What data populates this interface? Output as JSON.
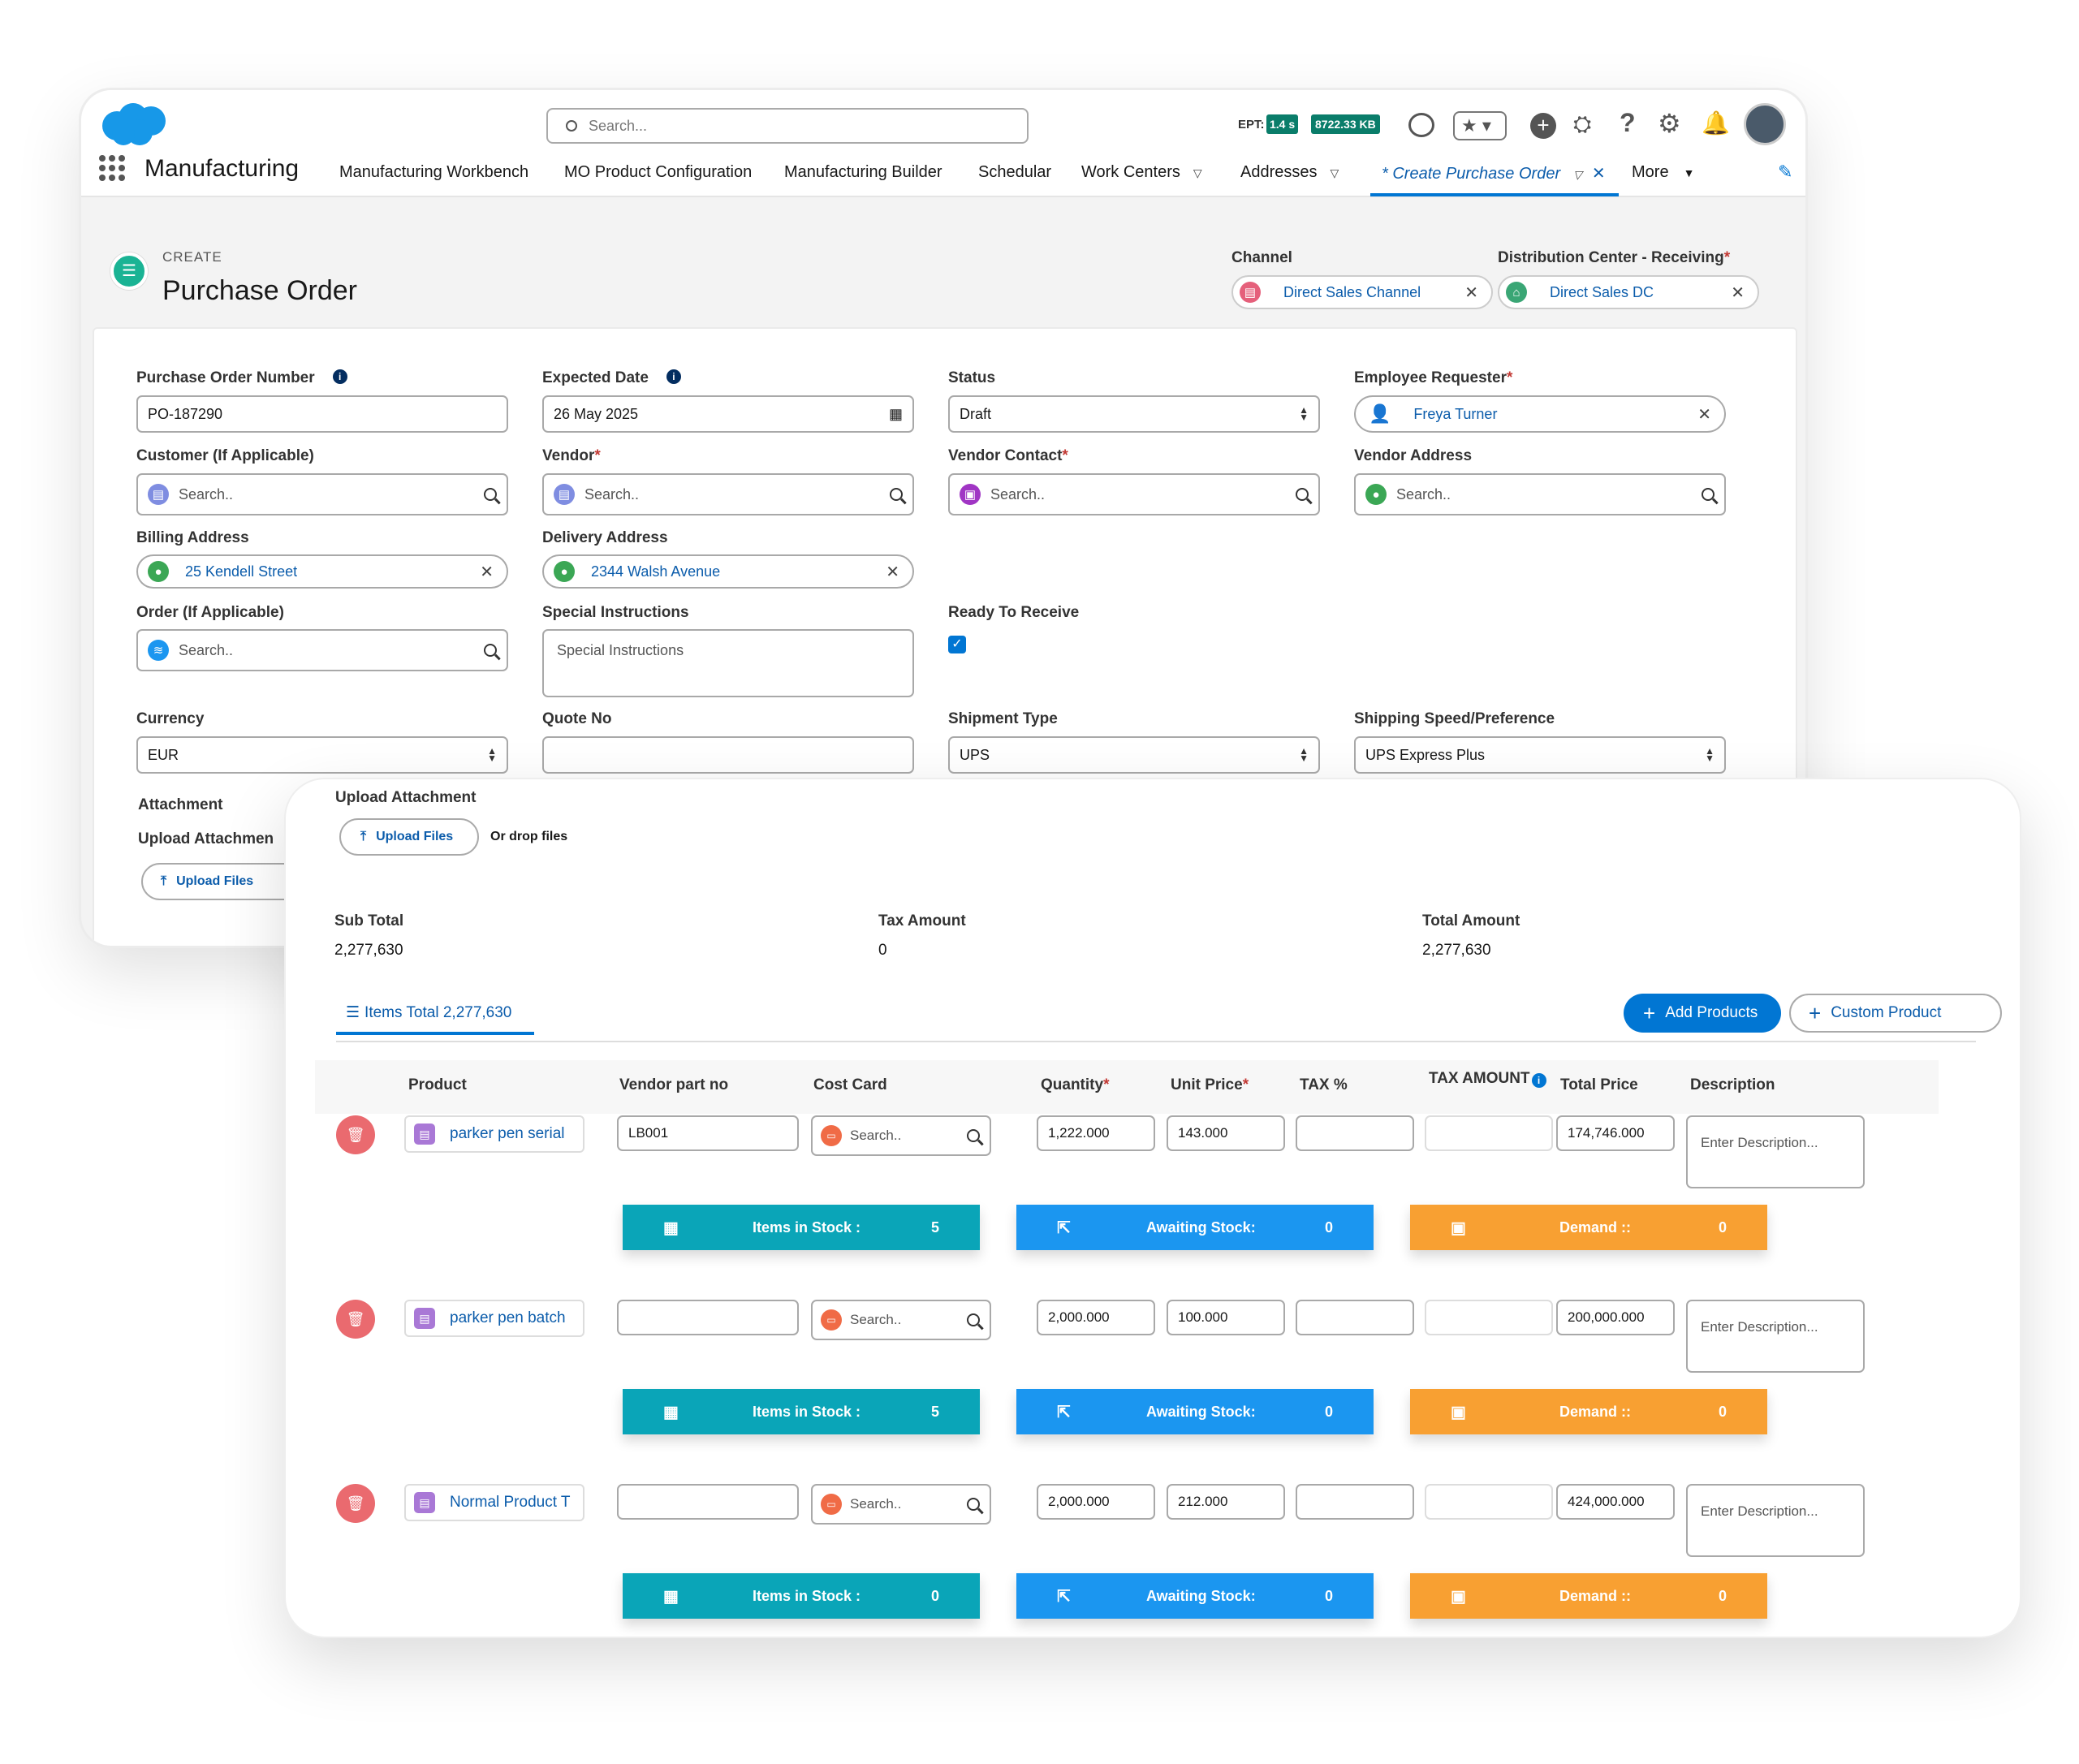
{
  "app": {
    "name": "Manufacturing",
    "search_placeholder": "Search..."
  },
  "header": {
    "ept_label": "EPT:",
    "ept_time": "1.4 s",
    "ept_size": "8722.33 KB"
  },
  "nav": {
    "items": [
      "Manufacturing Workbench",
      "MO Product Configuration",
      "Manufacturing Builder",
      "Schedular",
      "Work Centers",
      "Addresses"
    ],
    "active_tab": "* Create Purchase Order",
    "more": "More"
  },
  "page": {
    "eyebrow": "CREATE",
    "title": "Purchase Order",
    "channel_label": "Channel",
    "channel_value": "Direct Sales Channel",
    "dc_label": "Distribution Center - Receiving",
    "dc_value": "Direct Sales DC"
  },
  "form": {
    "po_number_label": "Purchase Order Number",
    "po_number": "PO-187290",
    "expected_date_label": "Expected Date",
    "expected_date": "26 May 2025",
    "status_label": "Status",
    "status": "Draft",
    "employee_label": "Employee Requester",
    "employee": "Freya Turner",
    "customer_label": "Customer (If Applicable)",
    "vendor_label": "Vendor",
    "vendor_contact_label": "Vendor Contact",
    "vendor_address_label": "Vendor Address",
    "search_placeholder": "Search..",
    "billing_label": "Billing Address",
    "billing": "25 Kendell Street",
    "delivery_label": "Delivery Address",
    "delivery": "2344 Walsh Avenue",
    "order_label": "Order (If Applicable)",
    "special_label": "Special Instructions",
    "special_placeholder": "Special Instructions",
    "ready_label": "Ready To Receive",
    "currency_label": "Currency",
    "currency": "EUR",
    "quote_label": "Quote No",
    "shipment_label": "Shipment Type",
    "shipment": "UPS",
    "speed_label": "Shipping Speed/Preference",
    "speed": "UPS Express Plus",
    "attachment_label": "Attachment",
    "upload_attachment_label": "Upload Attachmen",
    "upload_files": "Upload Files"
  },
  "panel": {
    "upload_attachment": "Upload Attachment",
    "upload_files": "Upload Files",
    "drop_files": "Or drop files",
    "subtotal_label": "Sub Total",
    "subtotal": "2,277,630",
    "tax_label": "Tax Amount",
    "tax": "0",
    "total_label": "Total Amount",
    "total": "2,277,630",
    "items_tab": "Items Total 2,277,630",
    "add_products": "Add Products",
    "custom_product": "Custom Product",
    "columns": {
      "product": "Product",
      "vendor_part": "Vendor part no",
      "cost_card": "Cost Card",
      "quantity": "Quantity",
      "unit_price": "Unit Price",
      "tax_pct": "TAX %",
      "tax_amount": "TAX AMOUNT",
      "total_price": "Total Price",
      "description": "Description"
    },
    "desc_placeholder": "Enter Description...",
    "stock_label": "Items in Stock :",
    "awaiting_label": "Awaiting Stock:",
    "demand_label": "Demand ::",
    "rows": [
      {
        "product": "parker pen serial",
        "vendor_part": "LB001",
        "quantity": "1,222.000",
        "unit_price": "143.000",
        "total": "174,746.000",
        "stock": "5",
        "awaiting": "0",
        "demand": "0"
      },
      {
        "product": "parker pen batch",
        "vendor_part": "",
        "quantity": "2,000.000",
        "unit_price": "100.000",
        "total": "200,000.000",
        "stock": "5",
        "awaiting": "0",
        "demand": "0"
      },
      {
        "product": "Normal Product T",
        "vendor_part": "",
        "quantity": "2,000.000",
        "unit_price": "212.000",
        "total": "424,000.000",
        "stock": "0",
        "awaiting": "0",
        "demand": "0"
      }
    ]
  },
  "colors": {
    "brand": "#0176d3",
    "teal": "#0aa5b8",
    "blue_bar": "#1b96f0",
    "orange": "#f8a032",
    "delete": "#ea6a6f"
  }
}
